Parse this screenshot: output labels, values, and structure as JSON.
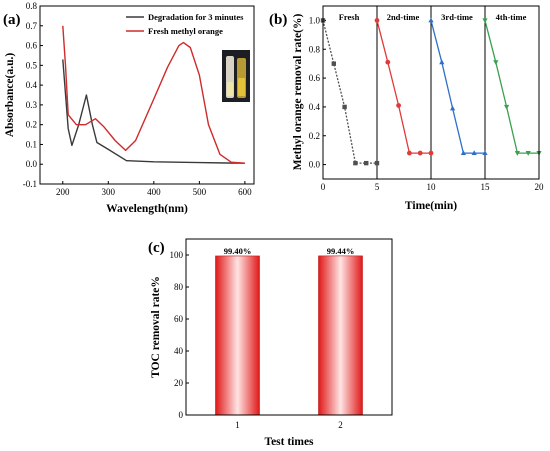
{
  "panels": {
    "a": "(a)",
    "b": "(b)",
    "c": "(c)"
  },
  "chart_data": [
    {
      "type": "line",
      "panel": "(a)",
      "xlabel": "Wavelength(nm)",
      "ylabel": "Absorbance(a.u.)",
      "xlim": [
        150,
        620
      ],
      "ylim": [
        -0.1,
        0.8
      ],
      "xticks": [
        200,
        300,
        400,
        500,
        600
      ],
      "yticks": [
        -0.1,
        0.0,
        0.1,
        0.2,
        0.3,
        0.4,
        0.5,
        0.6,
        0.7,
        0.8
      ],
      "legend_position": "top-right",
      "series": [
        {
          "name": "Degradation for 3 minutes",
          "color": "#3a3a3a",
          "points": [
            [
              200,
              0.53
            ],
            [
              212,
              0.18
            ],
            [
              220,
              0.095
            ],
            [
              235,
              0.2
            ],
            [
              252,
              0.35
            ],
            [
              265,
              0.2
            ],
            [
              275,
              0.11
            ],
            [
              300,
              0.075
            ],
            [
              340,
              0.018
            ],
            [
              400,
              0.012
            ],
            [
              500,
              0.008
            ],
            [
              560,
              0.006
            ],
            [
              600,
              0.005
            ]
          ]
        },
        {
          "name": "Fresh methyl orange",
          "color": "#d02a2a",
          "points": [
            [
              200,
              0.7
            ],
            [
              206,
              0.5
            ],
            [
              212,
              0.25
            ],
            [
              230,
              0.2
            ],
            [
              250,
              0.2
            ],
            [
              272,
              0.23
            ],
            [
              290,
              0.19
            ],
            [
              315,
              0.12
            ],
            [
              338,
              0.07
            ],
            [
              360,
              0.12
            ],
            [
              400,
              0.33
            ],
            [
              430,
              0.49
            ],
            [
              455,
              0.6
            ],
            [
              465,
              0.615
            ],
            [
              480,
              0.59
            ],
            [
              500,
              0.45
            ],
            [
              520,
              0.2
            ],
            [
              545,
              0.05
            ],
            [
              570,
              0.01
            ],
            [
              600,
              0.005
            ]
          ]
        }
      ]
    },
    {
      "type": "line",
      "panel": "(b)",
      "xlabel": "Time(min)",
      "ylabel": "Methyl orange removal rate(%)",
      "xlim": [
        0,
        20
      ],
      "ylim": [
        -0.1,
        1.1
      ],
      "xticks": [
        0,
        5,
        10,
        15,
        20
      ],
      "yticks": [
        0.0,
        0.2,
        0.4,
        0.6,
        0.8,
        1.0
      ],
      "segments": [
        {
          "name": "Fresh",
          "color": "#505050",
          "marker": "square",
          "points": [
            [
              0,
              1.0
            ],
            [
              1,
              0.7
            ],
            [
              2,
              0.4
            ],
            [
              3,
              0.01
            ],
            [
              4,
              0.01
            ],
            [
              5,
              0.01
            ]
          ]
        },
        {
          "name": "2nd-time",
          "color": "#e03a3a",
          "marker": "circle",
          "points": [
            [
              5,
              1.0
            ],
            [
              6,
              0.71
            ],
            [
              7,
              0.41
            ],
            [
              8,
              0.08
            ],
            [
              9,
              0.08
            ],
            [
              10,
              0.08
            ]
          ]
        },
        {
          "name": "3rd-time",
          "color": "#2f6fc8",
          "marker": "triangle-up",
          "points": [
            [
              10,
              1.0
            ],
            [
              11,
              0.71
            ],
            [
              12,
              0.39
            ],
            [
              13,
              0.08
            ],
            [
              14,
              0.08
            ],
            [
              15,
              0.08
            ]
          ]
        },
        {
          "name": "4th-time",
          "color": "#3aa050",
          "marker": "triangle-down",
          "points": [
            [
              15,
              1.0
            ],
            [
              16,
              0.71
            ],
            [
              17,
              0.4
            ],
            [
              18,
              0.08
            ],
            [
              19,
              0.08
            ],
            [
              20,
              0.08
            ]
          ]
        }
      ]
    },
    {
      "type": "bar",
      "panel": "(c)",
      "xlabel": "Test times",
      "ylabel": "TOC removal rate%",
      "categories": [
        "1",
        "2"
      ],
      "values": [
        99.4,
        99.44
      ],
      "data_labels": [
        "99.40%",
        "99.44%"
      ],
      "ylim": [
        0,
        110
      ],
      "yticks": [
        0,
        20,
        40,
        60,
        80,
        100
      ],
      "bar_color": "#e02020"
    }
  ]
}
